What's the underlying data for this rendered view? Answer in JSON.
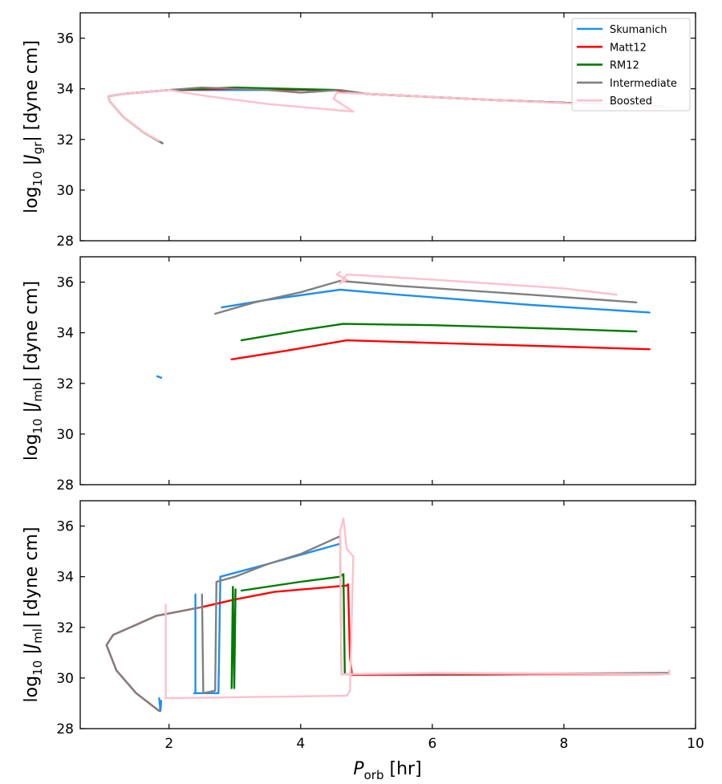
{
  "chart_data": [
    {
      "type": "line",
      "panel": "top",
      "ylabel_main": "log",
      "ylabel_sub": "10",
      "ylabel_sym": "J",
      "ylabel_symsub": "gr",
      "ylabel_units": "[dyne cm]",
      "xlim": [
        0.65,
        10.0
      ],
      "ylim": [
        28,
        37
      ],
      "yticks": [
        28,
        30,
        32,
        34,
        36
      ],
      "xticks": [
        2,
        4,
        6,
        8,
        10
      ],
      "show_xtick_labels": false,
      "legend": {
        "location": "top-right",
        "entries": [
          {
            "label": "Skumanich",
            "color": "#1f8fef"
          },
          {
            "label": "Matt12",
            "color": "#ff0000"
          },
          {
            "label": "RM12",
            "color": "#007a00"
          },
          {
            "label": "Intermediate",
            "color": "#808080"
          },
          {
            "label": "Boosted",
            "color": "#ffc0cb"
          }
        ]
      },
      "series": [
        {
          "name": "Skumanich",
          "color": "#1f8fef",
          "segments": [
            [
              [
                1.9,
                31.85
              ],
              [
                1.6,
                32.3
              ],
              [
                1.3,
                32.9
              ],
              [
                1.1,
                33.5
              ],
              [
                1.08,
                33.7
              ],
              [
                1.3,
                33.8
              ],
              [
                2.0,
                33.95
              ],
              [
                3.0,
                33.95
              ],
              [
                4.5,
                33.95
              ],
              [
                5.0,
                33.8
              ],
              [
                7.0,
                33.55
              ],
              [
                9.5,
                33.3
              ]
            ]
          ]
        },
        {
          "name": "Matt12",
          "color": "#ff0000",
          "segments": [
            [
              [
                1.9,
                31.85
              ],
              [
                1.6,
                32.3
              ],
              [
                1.3,
                32.9
              ],
              [
                1.1,
                33.5
              ],
              [
                1.08,
                33.7
              ],
              [
                1.3,
                33.8
              ],
              [
                2.0,
                33.95
              ],
              [
                3.0,
                34.0
              ],
              [
                4.5,
                33.95
              ],
              [
                5.0,
                33.8
              ],
              [
                7.0,
                33.55
              ],
              [
                9.5,
                33.3
              ]
            ]
          ]
        },
        {
          "name": "RM12",
          "color": "#007a00",
          "segments": [
            [
              [
                1.9,
                31.85
              ],
              [
                1.6,
                32.3
              ],
              [
                1.3,
                32.9
              ],
              [
                1.1,
                33.5
              ],
              [
                1.08,
                33.7
              ],
              [
                1.3,
                33.8
              ],
              [
                2.0,
                33.95
              ],
              [
                3.0,
                34.05
              ],
              [
                4.6,
                33.95
              ],
              [
                5.0,
                33.8
              ],
              [
                7.0,
                33.55
              ],
              [
                9.5,
                33.3
              ]
            ]
          ]
        },
        {
          "name": "Intermediate",
          "color": "#808080",
          "segments": [
            [
              [
                1.9,
                31.85
              ],
              [
                1.6,
                32.3
              ],
              [
                1.3,
                32.9
              ],
              [
                1.1,
                33.5
              ],
              [
                1.08,
                33.7
              ],
              [
                1.3,
                33.8
              ],
              [
                2.0,
                33.95
              ],
              [
                2.5,
                34.05
              ],
              [
                3.5,
                33.95
              ],
              [
                4.0,
                33.85
              ],
              [
                4.6,
                33.95
              ],
              [
                5.0,
                33.8
              ],
              [
                7.0,
                33.55
              ],
              [
                9.5,
                33.3
              ]
            ]
          ]
        },
        {
          "name": "Boosted",
          "color": "#ffc0cb",
          "segments": [
            [
              [
                1.85,
                31.95
              ],
              [
                1.6,
                32.3
              ],
              [
                1.3,
                32.9
              ],
              [
                1.1,
                33.5
              ],
              [
                1.08,
                33.7
              ],
              [
                1.3,
                33.8
              ],
              [
                2.0,
                33.95
              ],
              [
                2.6,
                33.7
              ],
              [
                3.5,
                33.4
              ],
              [
                4.8,
                33.1
              ],
              [
                4.5,
                33.6
              ],
              [
                4.55,
                33.85
              ],
              [
                5.0,
                33.8
              ],
              [
                7.0,
                33.55
              ],
              [
                9.6,
                33.25
              ]
            ]
          ]
        }
      ]
    },
    {
      "type": "line",
      "panel": "middle",
      "ylabel_main": "log",
      "ylabel_sub": "10",
      "ylabel_sym": "J",
      "ylabel_symsub": "mb",
      "ylabel_units": "[dyne cm]",
      "xlim": [
        0.65,
        10.0
      ],
      "ylim": [
        28,
        37
      ],
      "yticks": [
        28,
        30,
        32,
        34,
        36
      ],
      "xticks": [
        2,
        4,
        6,
        8,
        10
      ],
      "show_xtick_labels": false,
      "series": [
        {
          "name": "Skumanich",
          "color": "#1f8fef",
          "segments": [
            [
              [
                1.82,
                32.28
              ],
              [
                1.88,
                32.22
              ]
            ],
            [
              [
                2.8,
                35.0
              ],
              [
                3.5,
                35.3
              ],
              [
                4.6,
                35.7
              ],
              [
                5.5,
                35.5
              ],
              [
                7.5,
                35.1
              ],
              [
                9.3,
                34.8
              ]
            ]
          ]
        },
        {
          "name": "Matt12",
          "color": "#ff0000",
          "segments": [
            [
              [
                2.95,
                32.95
              ],
              [
                3.8,
                33.3
              ],
              [
                4.7,
                33.7
              ],
              [
                6.0,
                33.6
              ],
              [
                8.0,
                33.45
              ],
              [
                9.3,
                33.35
              ]
            ]
          ]
        },
        {
          "name": "RM12",
          "color": "#007a00",
          "segments": [
            [
              [
                3.1,
                33.7
              ],
              [
                4.0,
                34.1
              ],
              [
                4.65,
                34.35
              ],
              [
                6.0,
                34.3
              ],
              [
                8.0,
                34.15
              ],
              [
                9.1,
                34.05
              ]
            ]
          ]
        },
        {
          "name": "Intermediate",
          "color": "#808080",
          "segments": [
            [
              [
                2.7,
                34.75
              ],
              [
                3.3,
                35.2
              ],
              [
                4.0,
                35.6
              ],
              [
                4.6,
                36.05
              ],
              [
                5.5,
                35.85
              ],
              [
                7.5,
                35.5
              ],
              [
                9.1,
                35.2
              ]
            ]
          ]
        },
        {
          "name": "Boosted",
          "color": "#ffc0cb",
          "segments": [
            [
              [
                4.6,
                36.4
              ],
              [
                4.55,
                36.3
              ],
              [
                4.7,
                36.1
              ],
              [
                4.6,
                35.95
              ],
              [
                4.7,
                36.3
              ],
              [
                6.0,
                36.1
              ],
              [
                8.0,
                35.75
              ],
              [
                8.8,
                35.5
              ]
            ]
          ]
        }
      ]
    },
    {
      "type": "line",
      "panel": "bottom",
      "ylabel_main": "log",
      "ylabel_sub": "10",
      "ylabel_sym": "J",
      "ylabel_symsub": "ml",
      "ylabel_units": "[dyne cm]",
      "xlabel_sym": "P",
      "xlabel_sub": "orb",
      "xlabel_units": "[hr]",
      "xlim": [
        0.65,
        10.0
      ],
      "ylim": [
        28,
        37
      ],
      "yticks": [
        28,
        30,
        32,
        34,
        36
      ],
      "xticks": [
        2,
        4,
        6,
        8,
        10
      ],
      "xtick_labels": [
        "2",
        "4",
        "6",
        "8",
        "10"
      ],
      "show_xtick_labels": true,
      "series": [
        {
          "name": "Skumanich",
          "color": "#1f8fef",
          "segments": [
            [
              [
                1.85,
                29.2
              ],
              [
                1.87,
                28.7
              ],
              [
                1.88,
                29.1
              ],
              [
                1.86,
                28.8
              ]
            ],
            [
              [
                2.4,
                29.4
              ],
              [
                2.4,
                33.3
              ]
            ],
            [
              [
                2.38,
                29.4
              ],
              [
                2.75,
                29.4
              ],
              [
                2.78,
                34.0
              ],
              [
                3.5,
                34.5
              ],
              [
                4.6,
                35.3
              ]
            ]
          ]
        },
        {
          "name": "Matt12",
          "color": "#ff0000",
          "segments": [
            [
              [
                1.85,
                28.7
              ],
              [
                1.5,
                29.4
              ],
              [
                1.2,
                30.3
              ],
              [
                1.05,
                31.3
              ],
              [
                1.15,
                31.7
              ],
              [
                1.5,
                32.1
              ],
              [
                1.8,
                32.45
              ],
              [
                2.5,
                32.8
              ],
              [
                3.0,
                33.1
              ],
              [
                3.6,
                33.4
              ],
              [
                4.7,
                33.65
              ],
              [
                4.72,
                33.7
              ],
              [
                4.75,
                30.8
              ],
              [
                4.78,
                30.12
              ],
              [
                6.0,
                30.12
              ],
              [
                7.5,
                30.15
              ],
              [
                9.5,
                30.15
              ]
            ]
          ]
        },
        {
          "name": "RM12",
          "color": "#007a00",
          "segments": [
            [
              [
                2.95,
                29.6
              ],
              [
                2.97,
                33.6
              ],
              [
                2.99,
                29.6
              ],
              [
                3.01,
                33.5
              ]
            ],
            [
              [
                3.1,
                33.45
              ],
              [
                4.0,
                33.8
              ],
              [
                4.6,
                34.0
              ],
              [
                4.65,
                34.1
              ],
              [
                4.67,
                30.2
              ]
            ]
          ]
        },
        {
          "name": "Intermediate",
          "color": "#808080",
          "segments": [
            [
              [
                1.85,
                28.7
              ],
              [
                1.5,
                29.4
              ],
              [
                1.2,
                30.3
              ],
              [
                1.05,
                31.3
              ],
              [
                1.15,
                31.7
              ],
              [
                1.5,
                32.1
              ],
              [
                1.8,
                32.45
              ],
              [
                2.5,
                32.8
              ]
            ],
            [
              [
                2.5,
                33.3
              ],
              [
                2.52,
                29.4
              ],
              [
                2.7,
                29.5
              ],
              [
                2.72,
                33.8
              ],
              [
                3.0,
                34.0
              ],
              [
                3.5,
                34.5
              ],
              [
                4.0,
                34.9
              ],
              [
                4.6,
                35.6
              ],
              [
                4.62,
                30.15
              ],
              [
                6.0,
                30.15
              ],
              [
                9.6,
                30.2
              ]
            ]
          ]
        },
        {
          "name": "Boosted",
          "color": "#ffc0cb",
          "segments": [
            [
              [
                1.95,
                29.2
              ],
              [
                1.95,
                32.9
              ]
            ],
            [
              [
                1.95,
                29.2
              ],
              [
                4.7,
                29.3
              ],
              [
                4.75,
                29.5
              ],
              [
                4.8,
                34.8
              ],
              [
                4.7,
                35.1
              ],
              [
                4.65,
                36.3
              ],
              [
                4.6,
                35.8
              ],
              [
                4.62,
                30.15
              ],
              [
                6.0,
                30.2
              ],
              [
                9.6,
                30.15
              ],
              [
                9.6,
                30.3
              ]
            ]
          ]
        }
      ]
    }
  ]
}
